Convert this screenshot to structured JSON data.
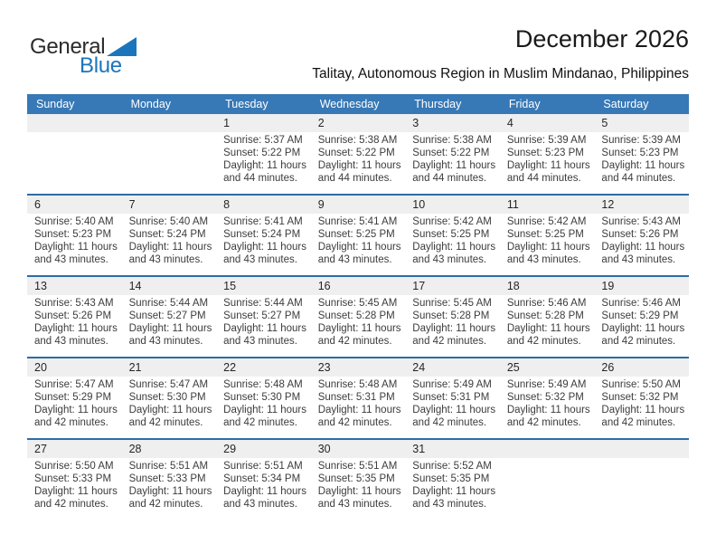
{
  "logo": {
    "part1": "General",
    "part2": "Blue",
    "triangle_color": "#1b75bc"
  },
  "header": {
    "title": "December 2026",
    "subtitle": "Talitay, Autonomous Region in Muslim Mindanao, Philippines"
  },
  "colors": {
    "header_bg": "#3778b6",
    "week_line": "#2c6da6",
    "stripe_gray": "#efefef",
    "logo_blue": "#1b75bc"
  },
  "calendar": {
    "day_headers": [
      "Sunday",
      "Monday",
      "Tuesday",
      "Wednesday",
      "Thursday",
      "Friday",
      "Saturday"
    ],
    "weeks": [
      [
        {
          "day": ""
        },
        {
          "day": ""
        },
        {
          "day": "1",
          "sunrise": "Sunrise: 5:37 AM",
          "sunset": "Sunset: 5:22 PM",
          "daylight1": "Daylight: 11 hours",
          "daylight2": "and 44 minutes."
        },
        {
          "day": "2",
          "sunrise": "Sunrise: 5:38 AM",
          "sunset": "Sunset: 5:22 PM",
          "daylight1": "Daylight: 11 hours",
          "daylight2": "and 44 minutes."
        },
        {
          "day": "3",
          "sunrise": "Sunrise: 5:38 AM",
          "sunset": "Sunset: 5:22 PM",
          "daylight1": "Daylight: 11 hours",
          "daylight2": "and 44 minutes."
        },
        {
          "day": "4",
          "sunrise": "Sunrise: 5:39 AM",
          "sunset": "Sunset: 5:23 PM",
          "daylight1": "Daylight: 11 hours",
          "daylight2": "and 44 minutes."
        },
        {
          "day": "5",
          "sunrise": "Sunrise: 5:39 AM",
          "sunset": "Sunset: 5:23 PM",
          "daylight1": "Daylight: 11 hours",
          "daylight2": "and 44 minutes."
        }
      ],
      [
        {
          "day": "6",
          "sunrise": "Sunrise: 5:40 AM",
          "sunset": "Sunset: 5:23 PM",
          "daylight1": "Daylight: 11 hours",
          "daylight2": "and 43 minutes."
        },
        {
          "day": "7",
          "sunrise": "Sunrise: 5:40 AM",
          "sunset": "Sunset: 5:24 PM",
          "daylight1": "Daylight: 11 hours",
          "daylight2": "and 43 minutes."
        },
        {
          "day": "8",
          "sunrise": "Sunrise: 5:41 AM",
          "sunset": "Sunset: 5:24 PM",
          "daylight1": "Daylight: 11 hours",
          "daylight2": "and 43 minutes."
        },
        {
          "day": "9",
          "sunrise": "Sunrise: 5:41 AM",
          "sunset": "Sunset: 5:25 PM",
          "daylight1": "Daylight: 11 hours",
          "daylight2": "and 43 minutes."
        },
        {
          "day": "10",
          "sunrise": "Sunrise: 5:42 AM",
          "sunset": "Sunset: 5:25 PM",
          "daylight1": "Daylight: 11 hours",
          "daylight2": "and 43 minutes."
        },
        {
          "day": "11",
          "sunrise": "Sunrise: 5:42 AM",
          "sunset": "Sunset: 5:25 PM",
          "daylight1": "Daylight: 11 hours",
          "daylight2": "and 43 minutes."
        },
        {
          "day": "12",
          "sunrise": "Sunrise: 5:43 AM",
          "sunset": "Sunset: 5:26 PM",
          "daylight1": "Daylight: 11 hours",
          "daylight2": "and 43 minutes."
        }
      ],
      [
        {
          "day": "13",
          "sunrise": "Sunrise: 5:43 AM",
          "sunset": "Sunset: 5:26 PM",
          "daylight1": "Daylight: 11 hours",
          "daylight2": "and 43 minutes."
        },
        {
          "day": "14",
          "sunrise": "Sunrise: 5:44 AM",
          "sunset": "Sunset: 5:27 PM",
          "daylight1": "Daylight: 11 hours",
          "daylight2": "and 43 minutes."
        },
        {
          "day": "15",
          "sunrise": "Sunrise: 5:44 AM",
          "sunset": "Sunset: 5:27 PM",
          "daylight1": "Daylight: 11 hours",
          "daylight2": "and 43 minutes."
        },
        {
          "day": "16",
          "sunrise": "Sunrise: 5:45 AM",
          "sunset": "Sunset: 5:28 PM",
          "daylight1": "Daylight: 11 hours",
          "daylight2": "and 42 minutes."
        },
        {
          "day": "17",
          "sunrise": "Sunrise: 5:45 AM",
          "sunset": "Sunset: 5:28 PM",
          "daylight1": "Daylight: 11 hours",
          "daylight2": "and 42 minutes."
        },
        {
          "day": "18",
          "sunrise": "Sunrise: 5:46 AM",
          "sunset": "Sunset: 5:28 PM",
          "daylight1": "Daylight: 11 hours",
          "daylight2": "and 42 minutes."
        },
        {
          "day": "19",
          "sunrise": "Sunrise: 5:46 AM",
          "sunset": "Sunset: 5:29 PM",
          "daylight1": "Daylight: 11 hours",
          "daylight2": "and 42 minutes."
        }
      ],
      [
        {
          "day": "20",
          "sunrise": "Sunrise: 5:47 AM",
          "sunset": "Sunset: 5:29 PM",
          "daylight1": "Daylight: 11 hours",
          "daylight2": "and 42 minutes."
        },
        {
          "day": "21",
          "sunrise": "Sunrise: 5:47 AM",
          "sunset": "Sunset: 5:30 PM",
          "daylight1": "Daylight: 11 hours",
          "daylight2": "and 42 minutes."
        },
        {
          "day": "22",
          "sunrise": "Sunrise: 5:48 AM",
          "sunset": "Sunset: 5:30 PM",
          "daylight1": "Daylight: 11 hours",
          "daylight2": "and 42 minutes."
        },
        {
          "day": "23",
          "sunrise": "Sunrise: 5:48 AM",
          "sunset": "Sunset: 5:31 PM",
          "daylight1": "Daylight: 11 hours",
          "daylight2": "and 42 minutes."
        },
        {
          "day": "24",
          "sunrise": "Sunrise: 5:49 AM",
          "sunset": "Sunset: 5:31 PM",
          "daylight1": "Daylight: 11 hours",
          "daylight2": "and 42 minutes."
        },
        {
          "day": "25",
          "sunrise": "Sunrise: 5:49 AM",
          "sunset": "Sunset: 5:32 PM",
          "daylight1": "Daylight: 11 hours",
          "daylight2": "and 42 minutes."
        },
        {
          "day": "26",
          "sunrise": "Sunrise: 5:50 AM",
          "sunset": "Sunset: 5:32 PM",
          "daylight1": "Daylight: 11 hours",
          "daylight2": "and 42 minutes."
        }
      ],
      [
        {
          "day": "27",
          "sunrise": "Sunrise: 5:50 AM",
          "sunset": "Sunset: 5:33 PM",
          "daylight1": "Daylight: 11 hours",
          "daylight2": "and 42 minutes."
        },
        {
          "day": "28",
          "sunrise": "Sunrise: 5:51 AM",
          "sunset": "Sunset: 5:33 PM",
          "daylight1": "Daylight: 11 hours",
          "daylight2": "and 42 minutes."
        },
        {
          "day": "29",
          "sunrise": "Sunrise: 5:51 AM",
          "sunset": "Sunset: 5:34 PM",
          "daylight1": "Daylight: 11 hours",
          "daylight2": "and 43 minutes."
        },
        {
          "day": "30",
          "sunrise": "Sunrise: 5:51 AM",
          "sunset": "Sunset: 5:35 PM",
          "daylight1": "Daylight: 11 hours",
          "daylight2": "and 43 minutes."
        },
        {
          "day": "31",
          "sunrise": "Sunrise: 5:52 AM",
          "sunset": "Sunset: 5:35 PM",
          "daylight1": "Daylight: 11 hours",
          "daylight2": "and 43 minutes."
        },
        {
          "day": ""
        },
        {
          "day": ""
        }
      ]
    ]
  }
}
